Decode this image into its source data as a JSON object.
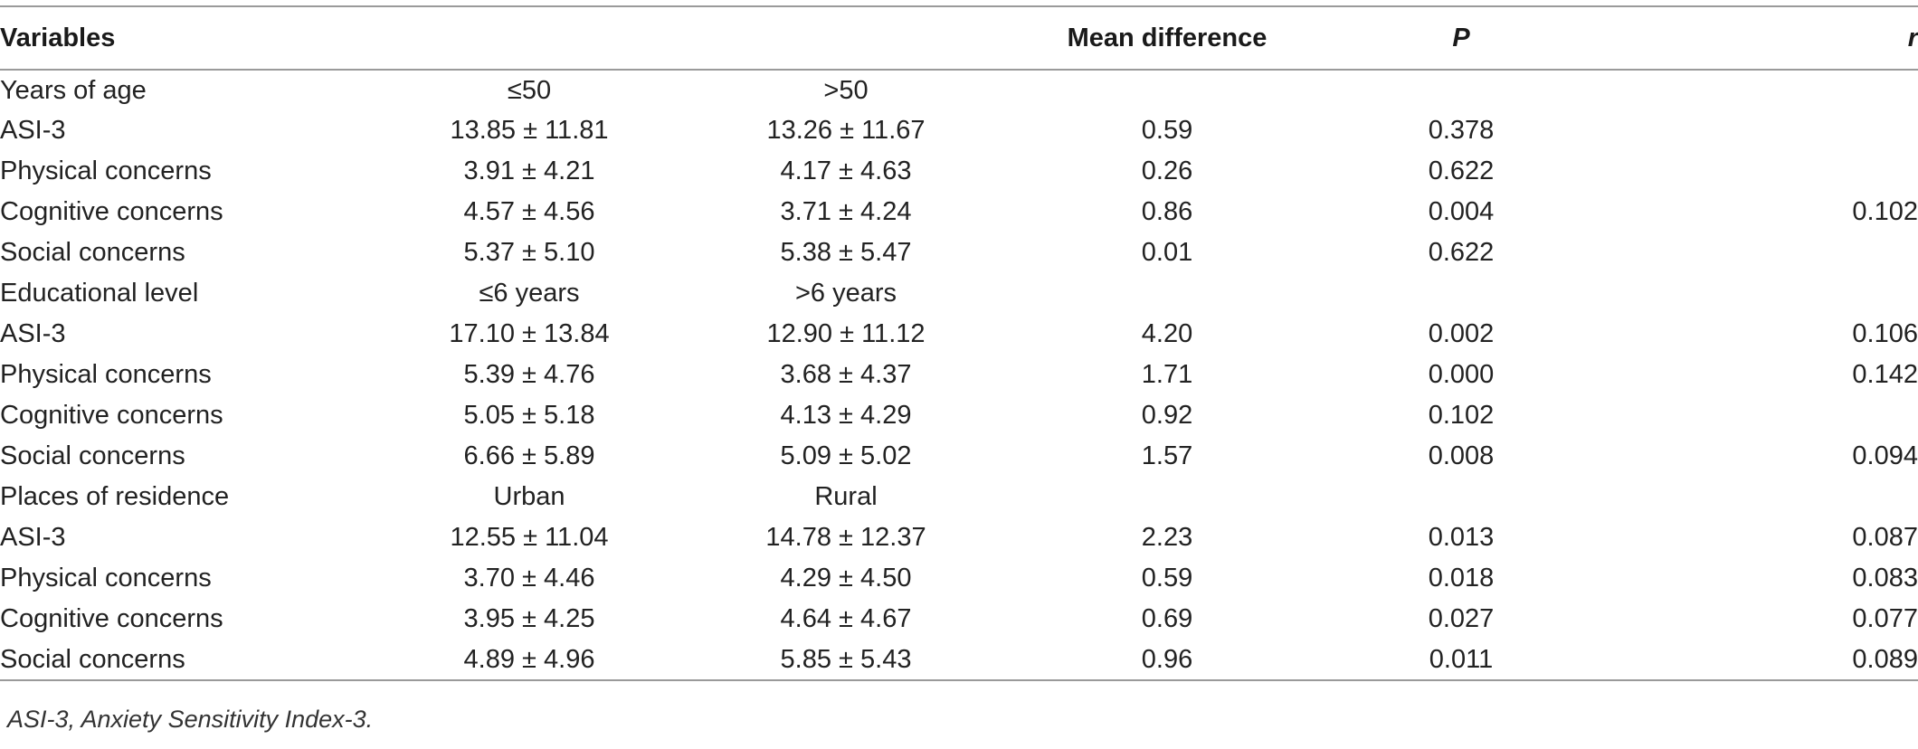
{
  "table": {
    "headers": [
      "Variables",
      "",
      "",
      "Mean difference",
      "P",
      "r"
    ],
    "rows": [
      {
        "type": "group",
        "cells": [
          "Years of age",
          "≤50",
          ">50",
          "",
          "",
          ""
        ]
      },
      {
        "type": "sub1",
        "cells": [
          "ASI-3",
          "13.85 ± 11.81",
          "13.26 ± 11.67",
          "0.59",
          "0.378",
          ""
        ]
      },
      {
        "type": "sub2",
        "cells": [
          "Physical concerns",
          "3.91 ± 4.21",
          "4.17 ± 4.63",
          "0.26",
          "0.622",
          ""
        ]
      },
      {
        "type": "sub2",
        "cells": [
          "Cognitive concerns",
          "4.57 ± 4.56",
          "3.71 ± 4.24",
          "0.86",
          "0.004",
          "0.102"
        ]
      },
      {
        "type": "sub2",
        "cells": [
          "Social concerns",
          "5.37 ± 5.10",
          "5.38 ± 5.47",
          "0.01",
          "0.622",
          ""
        ]
      },
      {
        "type": "group",
        "cells": [
          "Educational level",
          "≤6 years",
          ">6 years",
          "",
          "",
          ""
        ]
      },
      {
        "type": "sub1",
        "cells": [
          "ASI-3",
          "17.10 ± 13.84",
          "12.90 ± 11.12",
          "4.20",
          "0.002",
          "0.106"
        ]
      },
      {
        "type": "sub2",
        "cells": [
          "Physical concerns",
          "5.39 ± 4.76",
          "3.68 ± 4.37",
          "1.71",
          "0.000",
          "0.142"
        ]
      },
      {
        "type": "sub2",
        "cells": [
          "Cognitive concerns",
          "5.05 ± 5.18",
          "4.13 ± 4.29",
          "0.92",
          "0.102",
          ""
        ]
      },
      {
        "type": "sub2",
        "cells": [
          "Social concerns",
          "6.66 ± 5.89",
          "5.09 ± 5.02",
          "1.57",
          "0.008",
          "0.094"
        ]
      },
      {
        "type": "group",
        "cells": [
          "Places of residence",
          "Urban",
          "Rural",
          "",
          "",
          ""
        ]
      },
      {
        "type": "sub1",
        "cells": [
          "ASI-3",
          "12.55 ± 11.04",
          "14.78 ± 12.37",
          "2.23",
          "0.013",
          "0.087"
        ]
      },
      {
        "type": "sub2",
        "cells": [
          "Physical concerns",
          "3.70 ± 4.46",
          "4.29 ± 4.50",
          "0.59",
          "0.018",
          "0.083"
        ]
      },
      {
        "type": "sub2",
        "cells": [
          "Cognitive concerns",
          "3.95 ± 4.25",
          "4.64 ± 4.67",
          "0.69",
          "0.027",
          "0.077"
        ]
      },
      {
        "type": "sub2",
        "cells": [
          "Social concerns",
          "4.89 ± 4.96",
          "5.85 ± 5.43",
          "0.96",
          "0.011",
          "0.089"
        ]
      }
    ]
  },
  "footnote": "ASI-3, Anxiety Sensitivity Index-3."
}
